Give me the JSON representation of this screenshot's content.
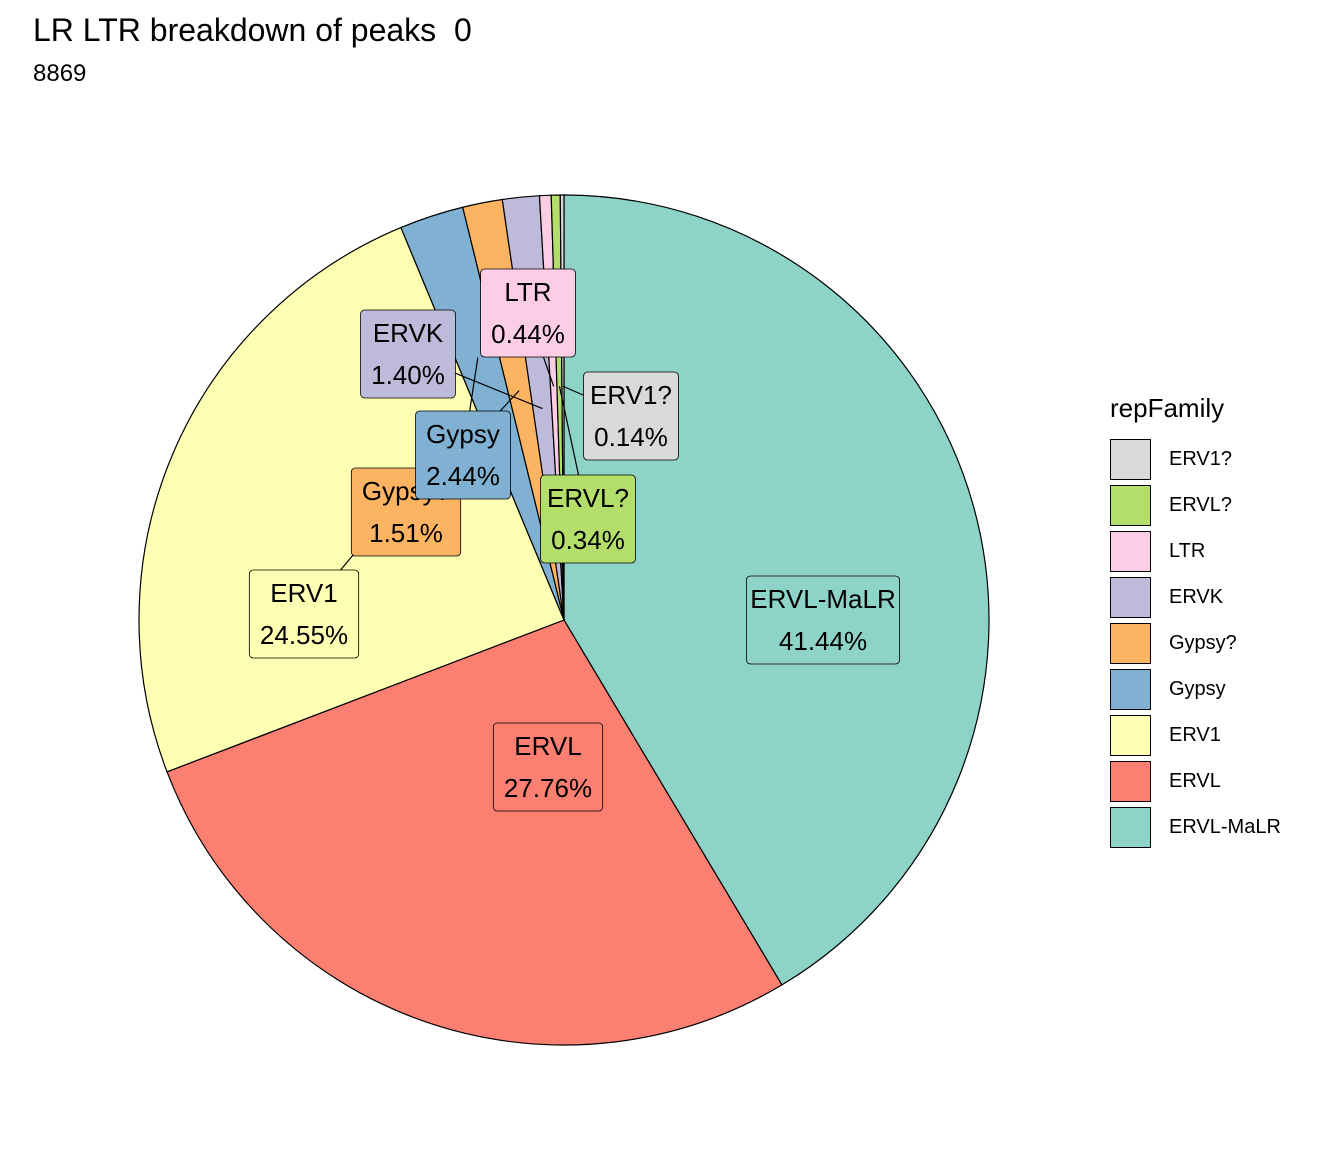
{
  "chart_data": {
    "type": "pie",
    "title": "LR LTR breakdown of peaks  0",
    "subtitle": "8869",
    "legend_title": "repFamily",
    "legend_position": "right",
    "slices": [
      {
        "name": "ERV1?",
        "percent": 0.14,
        "label": "0.14%",
        "color": "#d9d9d9"
      },
      {
        "name": "ERVL?",
        "percent": 0.34,
        "label": "0.34%",
        "color": "#b3de69"
      },
      {
        "name": "LTR",
        "percent": 0.44,
        "label": "0.44%",
        "color": "#fccde5"
      },
      {
        "name": "ERVK",
        "percent": 1.4,
        "label": "1.40%",
        "color": "#bebada"
      },
      {
        "name": "Gypsy?",
        "percent": 1.51,
        "label": "1.51%",
        "color": "#fdb462"
      },
      {
        "name": "Gypsy",
        "percent": 2.44,
        "label": "2.44%",
        "color": "#80b1d3"
      },
      {
        "name": "ERV1",
        "percent": 24.55,
        "label": "24.55%",
        "color": "#ffffb3"
      },
      {
        "name": "ERVL",
        "percent": 27.76,
        "label": "27.76%",
        "color": "#fb8072"
      },
      {
        "name": "ERVL-MaLR",
        "percent": 41.44,
        "label": "41.44%",
        "color": "#8dd3c7"
      }
    ]
  }
}
